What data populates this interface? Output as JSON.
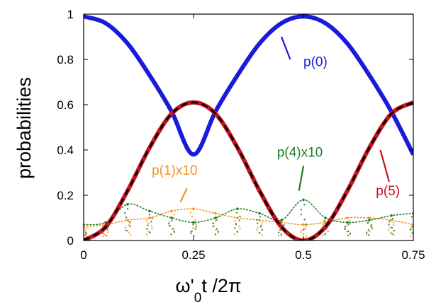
{
  "chart_data": {
    "type": "line",
    "xlabel": {
      "main": "ω'",
      "sub": "0",
      "rest": "t /2π"
    },
    "ylabel": "probabilities",
    "xlim": [
      0,
      0.75
    ],
    "ylim": [
      0,
      1
    ],
    "xticks": [
      {
        "value": 0,
        "label": "0"
      },
      {
        "value": 0.25,
        "label": "0.25"
      },
      {
        "value": 0.5,
        "label": "0.5"
      },
      {
        "value": 0.75,
        "label": "0.75"
      }
    ],
    "yticks": [
      {
        "value": 0,
        "label": "0"
      },
      {
        "value": 0.2,
        "label": "0.2"
      },
      {
        "value": 0.4,
        "label": "0.4"
      },
      {
        "value": 0.6,
        "label": "0.6"
      },
      {
        "value": 0.8,
        "label": "0.8"
      },
      {
        "value": 1,
        "label": "1"
      }
    ],
    "grid": false,
    "series": [
      {
        "name": "p(0)",
        "color": "#1a1adb",
        "style": "thick-line",
        "x": [
          0,
          0.05,
          0.1,
          0.15,
          0.2,
          0.25,
          0.3,
          0.35,
          0.4,
          0.45,
          0.5,
          0.55,
          0.6,
          0.65,
          0.7,
          0.75
        ],
        "y": [
          0.99,
          0.96,
          0.87,
          0.73,
          0.57,
          0.38,
          0.57,
          0.73,
          0.87,
          0.96,
          0.99,
          0.96,
          0.87,
          0.73,
          0.57,
          0.38
        ]
      },
      {
        "name": "p(5)",
        "color": "#c0141e",
        "style": "thick-line-with-black-dash",
        "x": [
          0,
          0.05,
          0.1,
          0.15,
          0.2,
          0.25,
          0.3,
          0.35,
          0.4,
          0.45,
          0.5,
          0.55,
          0.6,
          0.65,
          0.7,
          0.75
        ],
        "y": [
          0.0,
          0.06,
          0.22,
          0.41,
          0.56,
          0.61,
          0.56,
          0.41,
          0.22,
          0.06,
          0.0,
          0.06,
          0.22,
          0.41,
          0.56,
          0.61
        ]
      },
      {
        "name": "p(1)x10",
        "color": "#f29422",
        "style": "dots",
        "x": [
          0,
          0.05,
          0.1,
          0.15,
          0.2,
          0.25,
          0.3,
          0.35,
          0.4,
          0.45,
          0.5,
          0.55,
          0.6,
          0.65,
          0.7,
          0.75
        ],
        "y": [
          0.06,
          0.07,
          0.09,
          0.1,
          0.13,
          0.14,
          0.12,
          0.1,
          0.09,
          0.08,
          0.07,
          0.08,
          0.1,
          0.1,
          0.09,
          0.07
        ]
      },
      {
        "name": "p(4)x10",
        "color": "#1f7a28",
        "style": "dots",
        "x": [
          0,
          0.05,
          0.1,
          0.15,
          0.2,
          0.25,
          0.3,
          0.35,
          0.4,
          0.45,
          0.5,
          0.55,
          0.6,
          0.65,
          0.7,
          0.75
        ],
        "y": [
          0.07,
          0.08,
          0.16,
          0.13,
          0.1,
          0.08,
          0.1,
          0.14,
          0.12,
          0.09,
          0.18,
          0.1,
          0.08,
          0.09,
          0.11,
          0.12
        ]
      }
    ],
    "annotations": [
      {
        "text": "p(0)",
        "color": "#1a1adb",
        "x": 0.5,
        "y": 0.77,
        "arrow_from": [
          0.47,
          0.8
        ],
        "arrow_to": [
          0.45,
          0.9
        ]
      },
      {
        "text": "p(1)x10",
        "color": "#f29422",
        "x": 0.155,
        "y": 0.29,
        "arrow_from": [
          0.235,
          0.23
        ],
        "arrow_to": [
          0.22,
          0.17
        ]
      },
      {
        "text": "p(4)x10",
        "color": "#1f7a28",
        "x": 0.44,
        "y": 0.37,
        "arrow_from": [
          0.5,
          0.33
        ],
        "arrow_to": [
          0.49,
          0.22
        ]
      },
      {
        "text": "p(5)",
        "color": "#c0141e",
        "x": 0.665,
        "y": 0.2,
        "arrow_from": [
          0.695,
          0.26
        ],
        "arrow_to": [
          0.675,
          0.4
        ]
      }
    ]
  }
}
